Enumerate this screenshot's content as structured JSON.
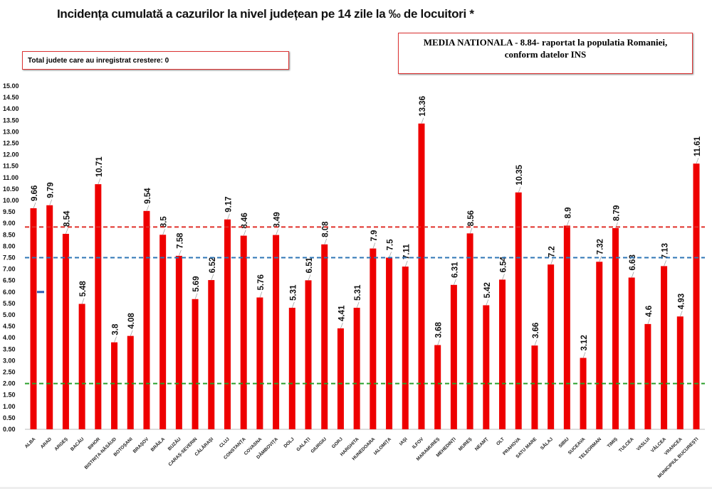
{
  "chart_data": {
    "type": "bar",
    "title": "Incidența cumulată a cazurilor la nivel județean pe 14 zile la ‰ de locuitori *",
    "categories": [
      "ALBA",
      "ARAD",
      "ARGEȘ",
      "BACĂU",
      "BIHOR",
      "BISTRIȚA-NĂSĂUD",
      "BOTOȘANI",
      "BRAȘOV",
      "BRĂILA",
      "BUZĂU",
      "CARAȘ-SEVERIN",
      "CĂLĂRAȘI",
      "CLUJ",
      "CONSTANȚA",
      "COVASNA",
      "DÂMBOVIȚA",
      "DOLJ",
      "GALAȚI",
      "GIURGIU",
      "GORJ",
      "HARGHITA",
      "HUNEDOARA",
      "IALOMIȚA",
      "IAȘI",
      "ILFOV",
      "MARAMUREȘ",
      "MEHEDINȚI",
      "MUREȘ",
      "NEAMȚ",
      "OLT",
      "PRAHOVA",
      "SATU MARE",
      "SĂLAJ",
      "SIBIU",
      "SUCEAVA",
      "TELEORMAN",
      "TIMIȘ",
      "TULCEA",
      "VASLUI",
      "VÂLCEA",
      "VRANCEA",
      "MUNICIPIUL BUCUREȘTI"
    ],
    "values": [
      9.66,
      9.79,
      8.54,
      5.48,
      10.71,
      3.8,
      4.08,
      9.54,
      8.5,
      7.58,
      5.69,
      6.52,
      9.17,
      8.46,
      5.76,
      8.49,
      5.31,
      6.51,
      8.08,
      4.41,
      5.31,
      7.9,
      7.5,
      7.11,
      13.36,
      3.68,
      6.31,
      8.56,
      5.42,
      6.54,
      10.35,
      3.66,
      7.2,
      8.9,
      3.12,
      7.32,
      8.79,
      6.63,
      4.6,
      7.13,
      4.93,
      11.61
    ],
    "ylim": [
      0,
      15
    ],
    "ytick_step": 0.5,
    "grid": false,
    "bar_color": "#ee0000",
    "reference_lines": [
      {
        "value": 8.84,
        "color": "#e0302a",
        "style": "dashed"
      },
      {
        "value": 7.5,
        "color": "#2e75b6",
        "style": "dashed"
      },
      {
        "value": 2.0,
        "color": "#2ca02c",
        "style": "dashed"
      }
    ],
    "marker": {
      "category": "ALBA",
      "value": 6.0,
      "color": "#2e5fb6"
    }
  },
  "info_left": "Total judete care au inregistrat crestere: 0",
  "info_right_line1": "MEDIA NATIONALA - 8.84-  raportat la populatia Romaniei,",
  "info_right_line2": "conform datelor INS"
}
